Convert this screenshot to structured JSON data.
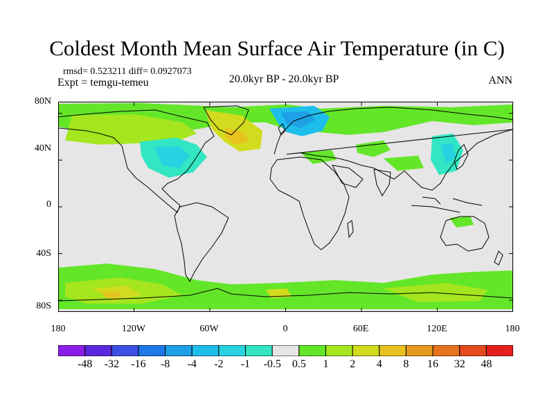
{
  "header": {
    "title": "Coldest Month Mean Surface Air Temperature (in C)",
    "stats": "rmsd= 0.523211 diff= 0.0927073",
    "experiment": "Expt = temgu-temeu",
    "period": "20.0kyr BP - 20.0kyr BP",
    "season": "ANN"
  },
  "map": {
    "projection": "cylindrical equidistant",
    "lon_range": [
      -180,
      180
    ],
    "lat_range": [
      -90,
      90
    ],
    "lat_ticks": [
      {
        "value": 80,
        "label": "80N"
      },
      {
        "value": 40,
        "label": "40N"
      },
      {
        "value": 0,
        "label": "0"
      },
      {
        "value": -40,
        "label": "40S"
      },
      {
        "value": -80,
        "label": "80S"
      }
    ],
    "lon_ticks": [
      {
        "value": -180,
        "label": "180"
      },
      {
        "value": -120,
        "label": "120W"
      },
      {
        "value": -60,
        "label": "60W"
      },
      {
        "value": 0,
        "label": "0"
      },
      {
        "value": 60,
        "label": "60E"
      },
      {
        "value": 120,
        "label": "120E"
      },
      {
        "value": 180,
        "label": "180"
      }
    ],
    "background_color": "#e6e6e6",
    "coastline_color": "#000000"
  },
  "colorbar": {
    "labels": [
      "-48",
      "-32",
      "-16",
      "-8",
      "-4",
      "-2",
      "-1",
      "-0.5",
      "0.5",
      "1",
      "2",
      "4",
      "8",
      "16",
      "32",
      "48"
    ],
    "colors": [
      "#8a1ee6",
      "#5a28dc",
      "#3c50e6",
      "#1e78e6",
      "#1ea0e6",
      "#1ebeeb",
      "#28d2e1",
      "#32e6c3",
      "#e6e6e6",
      "#64e628",
      "#a5e61e",
      "#d2dc1e",
      "#e6c31e",
      "#e69b1e",
      "#e6731e",
      "#e64b1e",
      "#e61e1e"
    ]
  }
}
